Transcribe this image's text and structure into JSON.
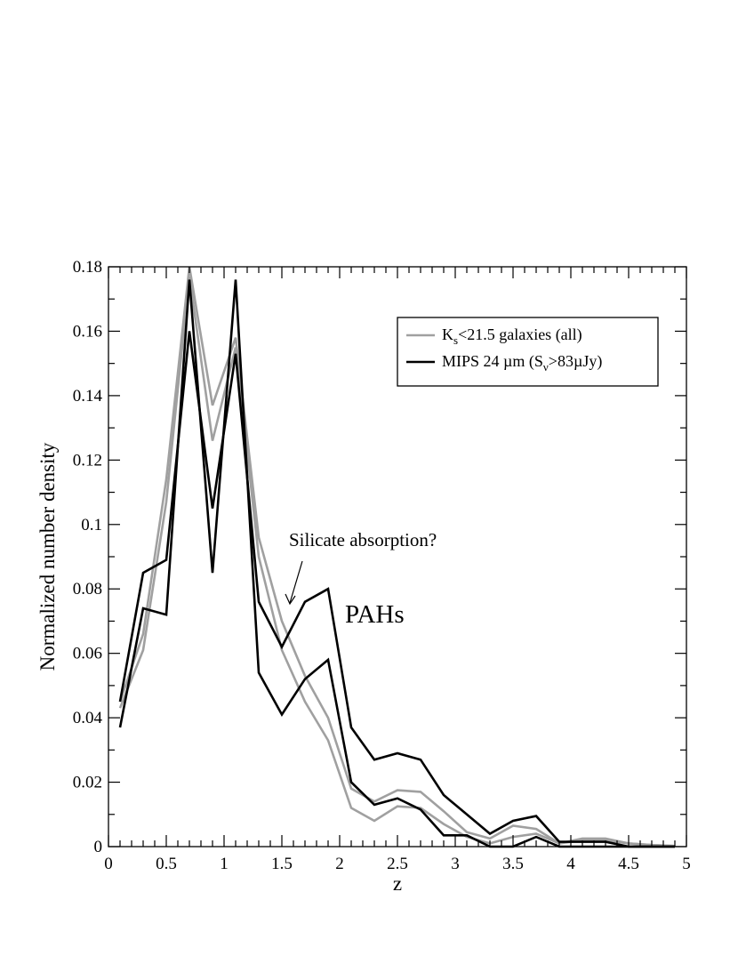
{
  "chart_data": {
    "type": "line",
    "xlabel": "z",
    "ylabel": "Normalized number density",
    "xlim": [
      0,
      5
    ],
    "ylim": [
      0,
      0.18
    ],
    "x_ticks": [
      "0",
      "0.5",
      "1",
      "1.5",
      "2",
      "2.5",
      "3",
      "3.5",
      "4",
      "4.5",
      "5"
    ],
    "y_ticks": [
      "0",
      "0.02",
      "0.04",
      "0.06",
      "0.08",
      "0.1",
      "0.12",
      "0.14",
      "0.16",
      "0.18"
    ],
    "grid": false,
    "legend_position": "top-right",
    "legend": [
      {
        "label": "K",
        "sub": "s",
        "rest": "<21.5 galaxies (all)",
        "color": "#a0a0a0"
      },
      {
        "label": "MIPS 24 µm (S",
        "sub": "ν",
        "rest": ">83µJy)",
        "color": "#000000"
      }
    ],
    "annotations": {
      "silicate": "Silicate absorption?",
      "pahs": "PAHs"
    },
    "series": [
      {
        "color": "#a0a0a0",
        "x": [
          0.1,
          0.3,
          0.5,
          0.7,
          0.9,
          1.1,
          1.3,
          1.5,
          1.7,
          1.9,
          2.1,
          2.3,
          2.5,
          2.7,
          2.9,
          3.1,
          3.3,
          3.5,
          3.7,
          3.9,
          4.1,
          4.3,
          4.5,
          4.7,
          4.9
        ],
        "y": [
          0.045,
          0.066,
          0.114,
          0.18,
          0.137,
          0.158,
          0.096,
          0.07,
          0.053,
          0.04,
          0.018,
          0.014,
          0.0175,
          0.017,
          0.011,
          0.0045,
          0.0025,
          0.0065,
          0.0055,
          0.001,
          0.002,
          0.002,
          0.001,
          0.0005,
          0.0002
        ]
      },
      {
        "color": "#a0a0a0",
        "x": [
          0.1,
          0.3,
          0.5,
          0.7,
          0.9,
          1.1,
          1.3,
          1.5,
          1.7,
          1.9,
          2.1,
          2.3,
          2.5,
          2.7,
          2.9,
          3.1,
          3.3,
          3.5,
          3.7,
          3.9,
          4.1,
          4.3,
          4.5,
          4.7,
          4.9
        ],
        "y": [
          0.043,
          0.061,
          0.107,
          0.177,
          0.126,
          0.155,
          0.09,
          0.061,
          0.045,
          0.033,
          0.012,
          0.008,
          0.0125,
          0.012,
          0.007,
          0.003,
          0.001,
          0.003,
          0.004,
          0.001,
          0.0025,
          0.0025,
          0.001,
          0.0005,
          0.0002
        ]
      },
      {
        "color": "#000000",
        "x": [
          0.1,
          0.3,
          0.5,
          0.7,
          0.9,
          1.1,
          1.3,
          1.5,
          1.7,
          1.9,
          2.1,
          2.3,
          2.5,
          2.7,
          2.9,
          3.1,
          3.3,
          3.5,
          3.7,
          3.9,
          4.1,
          4.3,
          4.5,
          4.7,
          4.9
        ],
        "y": [
          0.045,
          0.085,
          0.089,
          0.16,
          0.105,
          0.153,
          0.076,
          0.062,
          0.076,
          0.08,
          0.037,
          0.027,
          0.029,
          0.027,
          0.016,
          0.01,
          0.004,
          0.008,
          0.0095,
          0.0015,
          0.0015,
          0.0015,
          0.0,
          0.0,
          0.0
        ]
      },
      {
        "color": "#000000",
        "x": [
          0.1,
          0.3,
          0.5,
          0.7,
          0.9,
          1.1,
          1.3,
          1.5,
          1.7,
          1.9,
          2.1,
          2.3,
          2.5,
          2.7,
          2.9,
          3.1,
          3.3,
          3.5,
          3.7,
          3.9,
          4.1,
          4.3,
          4.5,
          4.7,
          4.9
        ],
        "y": [
          0.037,
          0.074,
          0.072,
          0.176,
          0.085,
          0.176,
          0.054,
          0.041,
          0.052,
          0.058,
          0.02,
          0.013,
          0.015,
          0.0115,
          0.0035,
          0.0035,
          0.0,
          0.0,
          0.003,
          0.0,
          0.0,
          0.0,
          0.0,
          0.0,
          0.0
        ]
      }
    ]
  }
}
